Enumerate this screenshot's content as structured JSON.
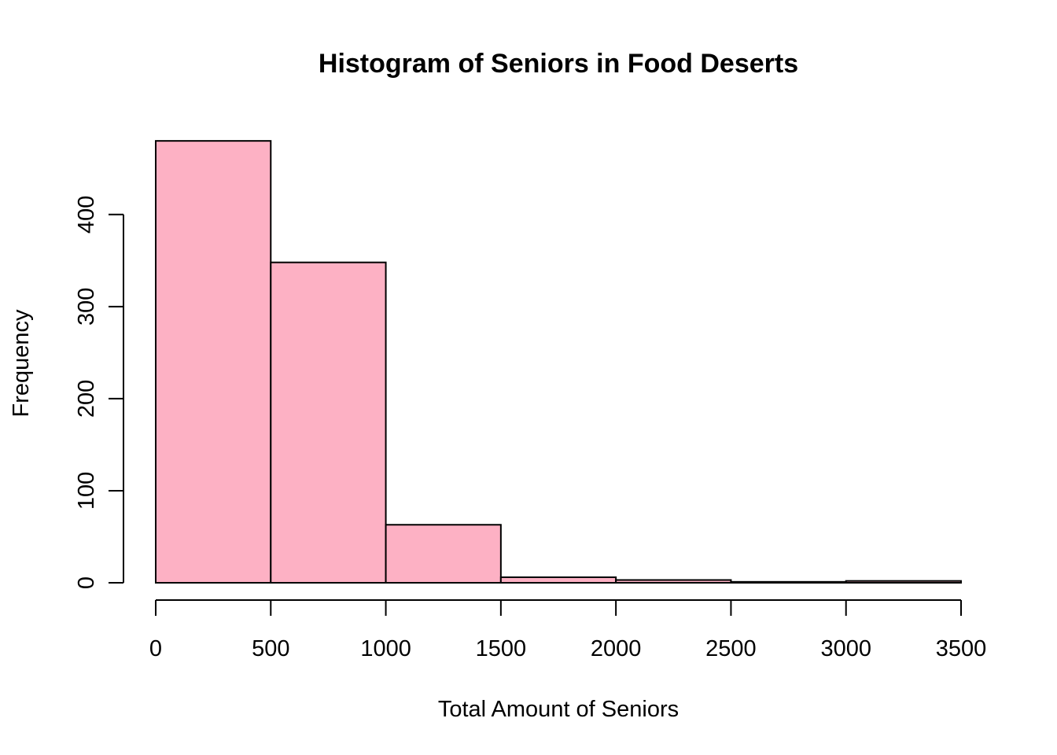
{
  "chart_data": {
    "type": "bar",
    "title": "Histogram of Seniors in Food Deserts",
    "xlabel": "Total Amount of Seniors",
    "ylabel": "Frequency",
    "bins": [
      {
        "start": 0,
        "end": 500,
        "count": 480
      },
      {
        "start": 500,
        "end": 1000,
        "count": 348
      },
      {
        "start": 1000,
        "end": 1500,
        "count": 63
      },
      {
        "start": 1500,
        "end": 2000,
        "count": 6
      },
      {
        "start": 2000,
        "end": 2500,
        "count": 3
      },
      {
        "start": 2500,
        "end": 3000,
        "count": 1
      },
      {
        "start": 3000,
        "end": 3500,
        "count": 2
      }
    ],
    "xlim": [
      0,
      3500
    ],
    "ylim": [
      0,
      480
    ],
    "x_ticks": [
      "0",
      "500",
      "1000",
      "1500",
      "2000",
      "2500",
      "3000",
      "3500"
    ],
    "y_ticks": [
      "0",
      "100",
      "200",
      "300",
      "400"
    ],
    "bar_color": "#FDB1C4",
    "grid": false,
    "legend": "none"
  }
}
